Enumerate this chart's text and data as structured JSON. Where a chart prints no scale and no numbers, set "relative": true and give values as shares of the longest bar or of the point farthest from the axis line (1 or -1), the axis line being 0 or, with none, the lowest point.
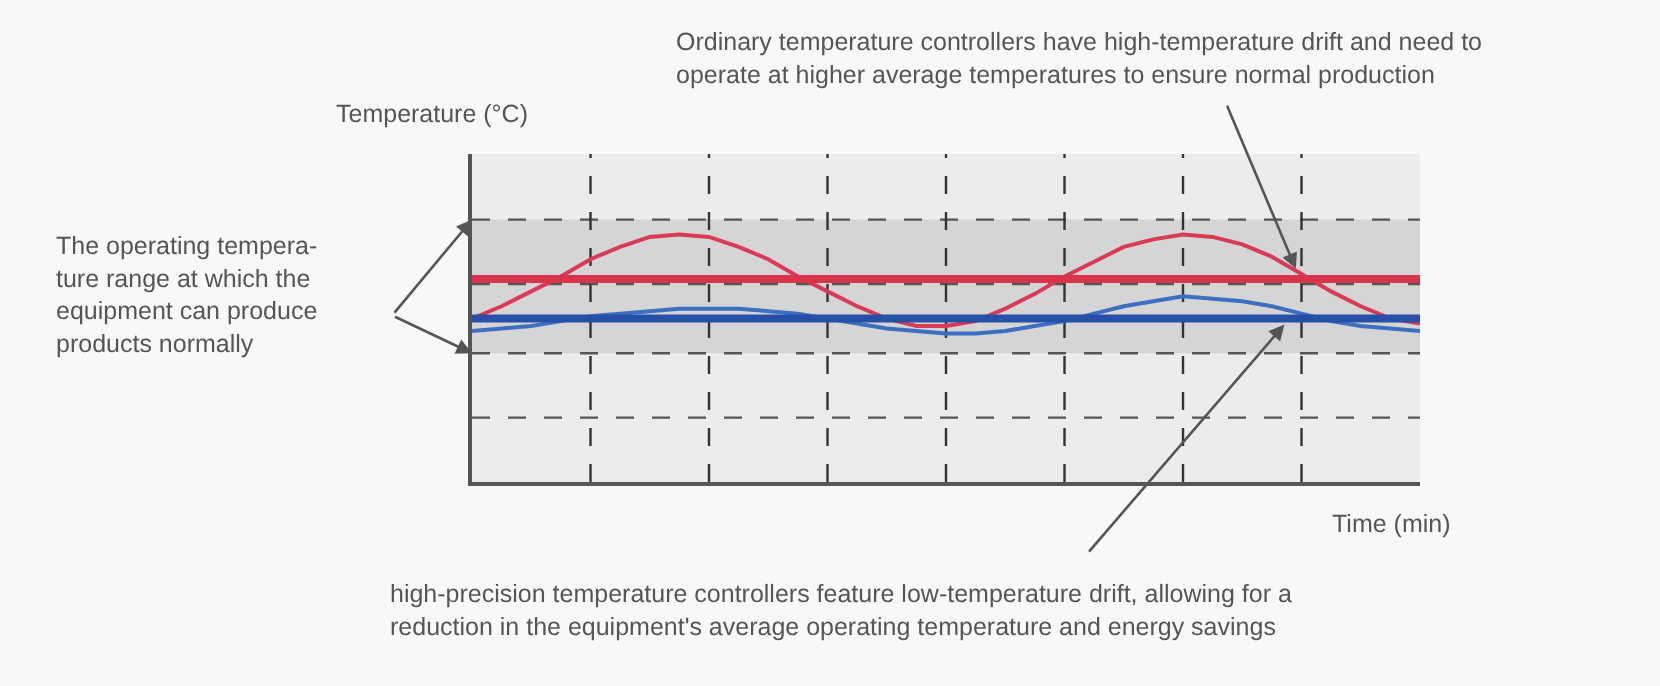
{
  "chart_data": {
    "type": "line",
    "relative": true,
    "ylabel": "Temperature (°C)",
    "xlabel": "Time (min)",
    "categories": [
      null,
      null,
      null,
      null,
      null,
      null,
      null,
      null,
      null,
      null,
      null,
      null,
      null,
      null,
      null,
      null,
      null,
      null,
      null,
      null,
      null,
      null,
      null,
      null,
      null,
      null,
      null,
      null,
      null,
      null,
      null,
      null,
      null
    ],
    "grid": "x",
    "marker": "none",
    "line_style": "solid",
    "series": [
      {
        "color": "#d93a55",
        "values": [
          0.66,
          0.71,
          0.77,
          0.83,
          0.9,
          0.95,
          0.99,
          1.0,
          0.99,
          0.95,
          0.9,
          0.83,
          0.77,
          0.71,
          0.66,
          0.63,
          0.63,
          0.65,
          0.7,
          0.76,
          0.83,
          0.89,
          0.95,
          0.98,
          1.0,
          0.99,
          0.96,
          0.91,
          0.84,
          0.77,
          0.71,
          0.66,
          0.64
        ]
      },
      {
        "color": "#3d6fc0",
        "values": [
          0.61,
          0.62,
          0.63,
          0.65,
          0.67,
          0.68,
          0.69,
          0.7,
          0.7,
          0.7,
          0.69,
          0.68,
          0.66,
          0.64,
          0.62,
          0.61,
          0.6,
          0.6,
          0.61,
          0.63,
          0.65,
          0.68,
          0.71,
          0.73,
          0.75,
          0.74,
          0.73,
          0.71,
          0.68,
          0.65,
          0.63,
          0.62,
          0.61
        ]
      },
      {
        "color": "#d9334d",
        "values": [
          0.82,
          0.82,
          0.82,
          0.82,
          0.82,
          0.82,
          0.82,
          0.82,
          0.82,
          0.82,
          0.82,
          0.82,
          0.82,
          0.82,
          0.82,
          0.82,
          0.82,
          0.82,
          0.82,
          0.82,
          0.82,
          0.82,
          0.82,
          0.82,
          0.82,
          0.82,
          0.82,
          0.82,
          0.82,
          0.82,
          0.82,
          0.82,
          0.82
        ]
      },
      {
        "color": "#2650a8",
        "values": [
          0.66,
          0.66,
          0.66,
          0.66,
          0.66,
          0.66,
          0.66,
          0.66,
          0.66,
          0.66,
          0.66,
          0.66,
          0.66,
          0.66,
          0.66,
          0.66,
          0.66,
          0.66,
          0.66,
          0.66,
          0.66,
          0.66,
          0.66,
          0.66,
          0.66,
          0.66,
          0.66,
          0.66,
          0.66,
          0.66,
          0.66,
          0.66,
          0.66
        ]
      }
    ],
    "bands": [
      {
        "axis": "y",
        "from": 0.52,
        "to": 1.06,
        "color": "#d5d5d5"
      }
    ],
    "ref_lines": [
      {
        "axis": "y",
        "value": 0.26,
        "color": "#555555",
        "line_style": "dashed"
      },
      {
        "axis": "y",
        "value": 0.52,
        "color": "#555555",
        "line_style": "dashed"
      },
      {
        "axis": "y",
        "value": 0.8,
        "color": "#555555",
        "line_style": "dashed"
      },
      {
        "axis": "y",
        "value": 1.06,
        "color": "#555555",
        "line_style": "dashed"
      }
    ],
    "annotations": [
      "Ordinary temperature controllers have high-temperature drift and need to\noperate at higher average temperatures to ensure normal production",
      "The operating tempera-\nture range at which the\nequipment can produce\nproducts normally",
      "high-precision temperature controllers feature low-temperature drift, allowing for a\nreduction in the equipment's average operating temperature and energy savings"
    ]
  }
}
